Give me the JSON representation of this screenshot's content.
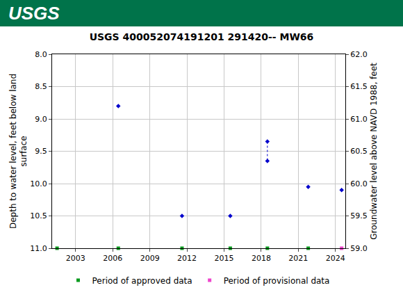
{
  "chart_data": {
    "type": "scatter",
    "header": "USGS",
    "title": "USGS 400052074191201 291420-- MW66",
    "xlim": [
      2001.1,
      2024.8
    ],
    "xticks": [
      2003,
      2006,
      2009,
      2012,
      2015,
      2018,
      2021,
      2024
    ],
    "ylabel": [
      "Depth to water level, feet below land",
      "surface"
    ],
    "ylim": [
      11,
      8
    ],
    "yticks": [
      {
        "value": 8,
        "label": "8.0"
      },
      8.5,
      {
        "value": 9,
        "label": "9.0"
      },
      9.5,
      {
        "value": 10,
        "label": "10.0"
      },
      10.5,
      {
        "value": 11,
        "label": "11.0"
      }
    ],
    "y2label": "Groundwater level above NAVD 1988, feet",
    "y2lim": [
      59,
      62
    ],
    "y2ticks": [
      {
        "value": 59,
        "label": "59.0"
      },
      59.5,
      {
        "value": 60,
        "label": "60.0"
      },
      60.5,
      {
        "value": 61,
        "label": "61.0"
      },
      61.5,
      {
        "value": 62,
        "label": "62.0"
      }
    ],
    "grid": true,
    "legend": "bottom",
    "series": [
      {
        "type": "scatter",
        "marker": "diamond",
        "color": "#0000cc",
        "x": [
          2006.45,
          2011.6,
          2015.5,
          2018.5,
          2018.5,
          2021.8,
          2024.5
        ],
        "values": [
          8.8,
          10.5,
          10.5,
          9.35,
          9.65,
          10.05,
          10.1
        ]
      },
      {
        "type": "line",
        "line_style": "dotted",
        "color": "#0000cc",
        "x": [
          2018.5,
          2018.5
        ],
        "values": [
          9.35,
          9.65
        ]
      },
      {
        "name": "Period of approved data",
        "type": "scatter",
        "marker": "square",
        "color": "#0a9a1e",
        "x": [
          2001.5,
          2006.45,
          2011.6,
          2015.5,
          2018.5,
          2021.8
        ],
        "values": [
          11,
          11,
          11,
          11,
          11,
          11
        ]
      },
      {
        "name": "Period of provisional data",
        "type": "scatter",
        "marker": "square",
        "color": "#ee44cc",
        "x": [
          2024.5
        ],
        "values": [
          11
        ]
      }
    ]
  }
}
